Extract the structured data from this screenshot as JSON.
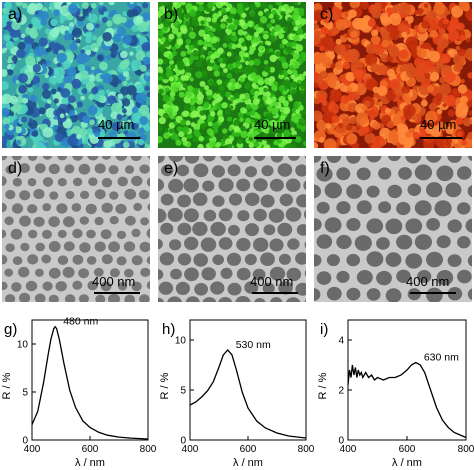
{
  "panels_top": [
    {
      "label": "a)",
      "scale": "40 µm",
      "base": "#3aa7a6",
      "palette": [
        "#4fd3c2",
        "#2e86c8",
        "#6fe0b0",
        "#2a5aa8",
        "#8df0c8",
        "#1f4f8a"
      ]
    },
    {
      "label": "b)",
      "scale": "40 µm",
      "base": "#1c7a14",
      "palette": [
        "#4fd82a",
        "#2fb81a",
        "#6ef040",
        "#1e8f10",
        "#8af555"
      ]
    },
    {
      "label": "c)",
      "scale": "40 µm",
      "base": "#8a1a08",
      "palette": [
        "#e8461a",
        "#f06a25",
        "#c4300c",
        "#ff8a3a",
        "#d8501c"
      ]
    }
  ],
  "panels_mid": [
    {
      "label": "d)",
      "scale": "400 nm"
    },
    {
      "label": "e)",
      "scale": "400 nm"
    },
    {
      "label": "f)",
      "scale": "400 nm"
    }
  ],
  "chart_data": [
    {
      "type": "line",
      "label": "g)",
      "annotation": "480 nm",
      "xlabel": "λ / nm",
      "ylabel": "R / %",
      "xlim": [
        400,
        800
      ],
      "ylim": [
        0,
        12.5
      ],
      "xticks": [
        "400",
        "600",
        "800"
      ],
      "yticks": [
        "0",
        "5",
        "10"
      ],
      "x": [
        400,
        420,
        440,
        455,
        465,
        475,
        480,
        485,
        495,
        510,
        530,
        550,
        575,
        600,
        630,
        660,
        700,
        740,
        800
      ],
      "y": [
        1.6,
        3.0,
        6.0,
        8.8,
        10.5,
        11.6,
        11.8,
        11.6,
        10.4,
        8.0,
        5.2,
        3.4,
        2.0,
        1.3,
        0.8,
        0.5,
        0.3,
        0.2,
        0.1
      ]
    },
    {
      "type": "line",
      "label": "h)",
      "annotation": "530 nm",
      "xlabel": "λ / nm",
      "ylabel": "R / %",
      "xlim": [
        400,
        800
      ],
      "ylim": [
        0,
        12
      ],
      "xticks": [
        "400",
        "600",
        "800"
      ],
      "yticks": [
        "0",
        "5",
        "10"
      ],
      "x": [
        400,
        420,
        440,
        460,
        480,
        500,
        515,
        530,
        545,
        560,
        580,
        600,
        630,
        660,
        700,
        740,
        800
      ],
      "y": [
        3.5,
        3.8,
        4.3,
        4.9,
        5.8,
        7.3,
        8.5,
        9.0,
        8.5,
        7.0,
        4.8,
        3.2,
        1.9,
        1.2,
        0.7,
        0.4,
        0.2
      ]
    },
    {
      "type": "line",
      "label": "i)",
      "annotation": "630 nm",
      "xlabel": "λ / nm",
      "ylabel": "R / %",
      "xlim": [
        400,
        800
      ],
      "ylim": [
        0,
        4.8
      ],
      "xticks": [
        "400",
        "600",
        "800"
      ],
      "yticks": [
        "0",
        "2",
        "4"
      ],
      "x": [
        400,
        405,
        410,
        415,
        420,
        425,
        430,
        435,
        440,
        445,
        450,
        460,
        470,
        480,
        490,
        500,
        520,
        540,
        560,
        580,
        600,
        615,
        630,
        645,
        660,
        680,
        700,
        720,
        740,
        760,
        780,
        800
      ],
      "y": [
        2.2,
        2.8,
        2.5,
        3.0,
        2.6,
        2.9,
        2.5,
        2.8,
        2.6,
        2.7,
        2.5,
        2.7,
        2.5,
        2.6,
        2.4,
        2.5,
        2.4,
        2.5,
        2.5,
        2.6,
        2.8,
        3.0,
        3.1,
        3.0,
        2.7,
        2.0,
        1.3,
        0.8,
        0.5,
        0.3,
        0.2,
        0.1
      ]
    }
  ]
}
